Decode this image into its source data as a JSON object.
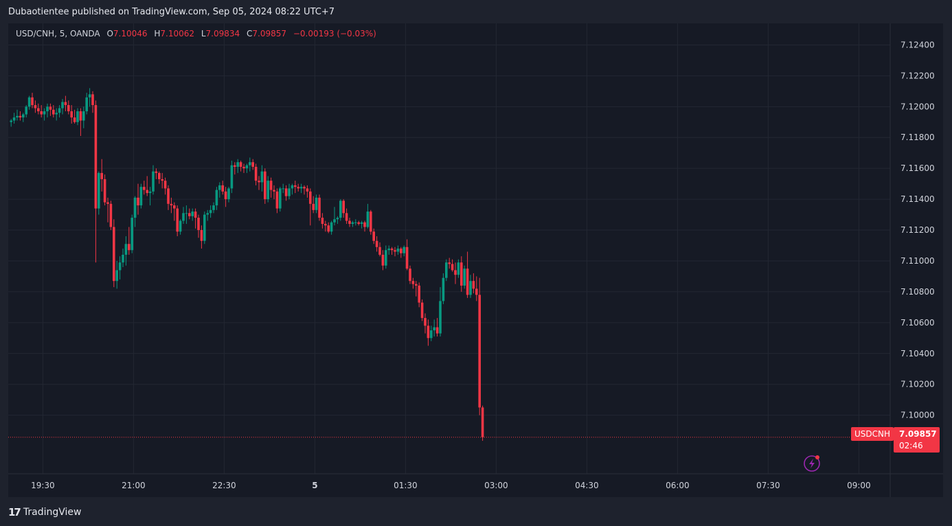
{
  "header": {
    "published_text": "Dubaotientee published on TradingView.com, Sep 05, 2024 08:22 UTC+7"
  },
  "legend": {
    "symbol": "USD/CNH, 5, OANDA",
    "o_label": "O",
    "o_value": "7.10046",
    "h_label": "H",
    "h_value": "7.10062",
    "l_label": "L",
    "l_value": "7.09834",
    "c_label": "C",
    "c_value": "7.09857",
    "change": "−0.00193 (−0.03%)"
  },
  "price_tag": {
    "symbol": "USDCNH",
    "price": "7.09857",
    "countdown": "02:46"
  },
  "footer": {
    "brand": "TradingView",
    "logo_mark": "17"
  },
  "colors": {
    "up": "#089981",
    "down": "#f23645",
    "background": "#161a25",
    "grid": "#232733"
  },
  "icons": {
    "bottom_right": "lightning-icon"
  },
  "chart_data": {
    "type": "candlestick",
    "title": "USD/CNH, 5, OANDA",
    "ylim": [
      7.0962,
      7.1254
    ],
    "y_ticks": [
      "7.12400",
      "7.12200",
      "7.12000",
      "7.11800",
      "7.11600",
      "7.11400",
      "7.11200",
      "7.11000",
      "7.10800",
      "7.10600",
      "7.10400",
      "7.10200",
      "7.10000"
    ],
    "x_ticks": [
      "19:30",
      "21:00",
      "22:30",
      "5",
      "01:30",
      "03:00",
      "04:30",
      "06:00",
      "07:30",
      "09:00"
    ],
    "last_price": 7.09857,
    "grid": true,
    "candles": [
      [
        7.119,
        7.1192,
        7.1187,
        7.1191
      ],
      [
        7.1191,
        7.1196,
        7.1189,
        7.1193
      ],
      [
        7.1193,
        7.1198,
        7.1191,
        7.1194
      ],
      [
        7.1194,
        7.1197,
        7.1191,
        7.1193
      ],
      [
        7.1193,
        7.1196,
        7.119,
        7.1195
      ],
      [
        7.1195,
        7.1201,
        7.1193,
        7.12
      ],
      [
        7.12,
        7.1207,
        7.1198,
        7.1206
      ],
      [
        7.1206,
        7.1209,
        7.1199,
        7.1201
      ],
      [
        7.1201,
        7.1204,
        7.1196,
        7.1199
      ],
      [
        7.1199,
        7.1202,
        7.1195,
        7.1197
      ],
      [
        7.1197,
        7.1201,
        7.1193,
        7.1195
      ],
      [
        7.1195,
        7.1199,
        7.1191,
        7.1197
      ],
      [
        7.1197,
        7.1202,
        7.1193,
        7.12
      ],
      [
        7.12,
        7.1202,
        7.1194,
        7.1198
      ],
      [
        7.1198,
        7.1201,
        7.1193,
        7.1195
      ],
      [
        7.1195,
        7.1199,
        7.1191,
        7.1196
      ],
      [
        7.1196,
        7.1201,
        7.1193,
        7.1199
      ],
      [
        7.1199,
        7.1205,
        7.1195,
        7.1203
      ],
      [
        7.1203,
        7.1207,
        7.1197,
        7.1201
      ],
      [
        7.1201,
        7.1204,
        7.1195,
        7.1197
      ],
      [
        7.1197,
        7.1201,
        7.1189,
        7.1193
      ],
      [
        7.1193,
        7.1198,
        7.1189,
        7.119
      ],
      [
        7.119,
        7.1199,
        7.1188,
        7.1197
      ],
      [
        7.1197,
        7.1199,
        7.1181,
        7.1191
      ],
      [
        7.1191,
        7.12,
        7.1186,
        7.1197
      ],
      [
        7.1197,
        7.1209,
        7.1195,
        7.1206
      ],
      [
        7.1206,
        7.1212,
        7.12,
        7.1208
      ],
      [
        7.1208,
        7.121,
        7.1196,
        7.1201
      ],
      [
        7.1201,
        7.1204,
        7.1099,
        7.1134
      ],
      [
        7.1134,
        7.1158,
        7.113,
        7.1157
      ],
      [
        7.1157,
        7.1166,
        7.1145,
        7.1153
      ],
      [
        7.1153,
        7.1156,
        7.1136,
        7.1138
      ],
      [
        7.1138,
        7.1141,
        7.1125,
        7.1137
      ],
      [
        7.1137,
        7.1139,
        7.112,
        7.1122
      ],
      [
        7.1122,
        7.1127,
        7.1083,
        7.1087
      ],
      [
        7.1087,
        7.11,
        7.1082,
        7.1094
      ],
      [
        7.1094,
        7.1103,
        7.1088,
        7.1099
      ],
      [
        7.1099,
        7.1108,
        7.1096,
        7.1104
      ],
      [
        7.1104,
        7.1116,
        7.1097,
        7.1111
      ],
      [
        7.1111,
        7.1122,
        7.1104,
        7.1107
      ],
      [
        7.1107,
        7.113,
        7.1105,
        7.1128
      ],
      [
        7.1128,
        7.1142,
        7.1122,
        7.1141
      ],
      [
        7.1141,
        7.115,
        7.113,
        7.1136
      ],
      [
        7.1136,
        7.115,
        7.1134,
        7.1148
      ],
      [
        7.1148,
        7.1152,
        7.1143,
        7.1146
      ],
      [
        7.1146,
        7.1155,
        7.1142,
        7.1144
      ],
      [
        7.1144,
        7.1148,
        7.1136,
        7.1145
      ],
      [
        7.1145,
        7.1162,
        7.1143,
        7.1158
      ],
      [
        7.1158,
        7.116,
        7.1153,
        7.1157
      ],
      [
        7.1157,
        7.1158,
        7.115,
        7.1153
      ],
      [
        7.1153,
        7.1157,
        7.1147,
        7.1152
      ],
      [
        7.1152,
        7.1154,
        7.1143,
        7.1147
      ],
      [
        7.1147,
        7.1149,
        7.1133,
        7.1137
      ],
      [
        7.1137,
        7.1141,
        7.1131,
        7.1136
      ],
      [
        7.1136,
        7.1138,
        7.1126,
        7.1134
      ],
      [
        7.1134,
        7.1136,
        7.1116,
        7.1119
      ],
      [
        7.1119,
        7.1127,
        7.1117,
        7.1126
      ],
      [
        7.1126,
        7.1135,
        7.1124,
        7.1131
      ],
      [
        7.1131,
        7.1136,
        7.1124,
        7.1131
      ],
      [
        7.1131,
        7.1134,
        7.1127,
        7.1129
      ],
      [
        7.1129,
        7.1134,
        7.1126,
        7.1132
      ],
      [
        7.1132,
        7.1134,
        7.1121,
        7.1128
      ],
      [
        7.1128,
        7.113,
        7.1115,
        7.112
      ],
      [
        7.112,
        7.1123,
        7.1108,
        7.1113
      ],
      [
        7.1113,
        7.1132,
        7.1111,
        7.113
      ],
      [
        7.113,
        7.1133,
        7.1126,
        7.1131
      ],
      [
        7.1131,
        7.1136,
        7.1128,
        7.1133
      ],
      [
        7.1133,
        7.1138,
        7.1131,
        7.1136
      ],
      [
        7.1136,
        7.1148,
        7.1133,
        7.1146
      ],
      [
        7.1146,
        7.1151,
        7.1141,
        7.1149
      ],
      [
        7.1149,
        7.1152,
        7.1143,
        7.1145
      ],
      [
        7.1145,
        7.1148,
        7.1135,
        7.114
      ],
      [
        7.114,
        7.1148,
        7.1138,
        7.1147
      ],
      [
        7.1147,
        7.1165,
        7.1144,
        7.1162
      ],
      [
        7.1162,
        7.1164,
        7.1156,
        7.1161
      ],
      [
        7.1161,
        7.1166,
        7.1157,
        7.1164
      ],
      [
        7.1164,
        7.1165,
        7.1158,
        7.1161
      ],
      [
        7.1161,
        7.1163,
        7.1157,
        7.116
      ],
      [
        7.116,
        7.1163,
        7.1157,
        7.1162
      ],
      [
        7.1162,
        7.1167,
        7.1158,
        7.1164
      ],
      [
        7.1164,
        7.1166,
        7.1159,
        7.1161
      ],
      [
        7.1161,
        7.1163,
        7.1149,
        7.1152
      ],
      [
        7.1152,
        7.1155,
        7.1146,
        7.1151
      ],
      [
        7.1151,
        7.1162,
        7.1145,
        7.1158
      ],
      [
        7.1158,
        7.116,
        7.1137,
        7.114
      ],
      [
        7.114,
        7.1155,
        7.1138,
        7.1152
      ],
      [
        7.1152,
        7.1154,
        7.1141,
        7.1146
      ],
      [
        7.1146,
        7.1149,
        7.114,
        7.1145
      ],
      [
        7.1145,
        7.1147,
        7.1131,
        7.1134
      ],
      [
        7.1134,
        7.1148,
        7.1132,
        7.1147
      ],
      [
        7.1147,
        7.115,
        7.1144,
        7.1147
      ],
      [
        7.1147,
        7.1149,
        7.1139,
        7.1142
      ],
      [
        7.1142,
        7.115,
        7.114,
        7.1147
      ],
      [
        7.1147,
        7.115,
        7.1143,
        7.1149
      ],
      [
        7.1149,
        7.1152,
        7.1144,
        7.1148
      ],
      [
        7.1148,
        7.115,
        7.1145,
        7.1147
      ],
      [
        7.1147,
        7.115,
        7.1144,
        7.1148
      ],
      [
        7.1148,
        7.1149,
        7.1143,
        7.1147
      ],
      [
        7.1147,
        7.1149,
        7.1141,
        7.1145
      ],
      [
        7.1145,
        7.1147,
        7.1123,
        7.1137
      ],
      [
        7.1137,
        7.1142,
        7.1131,
        7.1133
      ],
      [
        7.1133,
        7.1143,
        7.1131,
        7.1141
      ],
      [
        7.1141,
        7.1143,
        7.1126,
        7.1128
      ],
      [
        7.1128,
        7.1131,
        7.1121,
        7.1124
      ],
      [
        7.1124,
        7.1126,
        7.1119,
        7.1123
      ],
      [
        7.1123,
        7.1125,
        7.1118,
        7.1119
      ],
      [
        7.1119,
        7.1126,
        7.1117,
        7.1125
      ],
      [
        7.1125,
        7.1135,
        7.1123,
        7.1127
      ],
      [
        7.1127,
        7.1129,
        7.1124,
        7.1128
      ],
      [
        7.1128,
        7.114,
        7.1126,
        7.1139
      ],
      [
        7.1139,
        7.114,
        7.1128,
        7.1131
      ],
      [
        7.1131,
        7.1134,
        7.1124,
        7.1126
      ],
      [
        7.1126,
        7.1128,
        7.1122,
        7.1124
      ],
      [
        7.1124,
        7.1126,
        7.1122,
        7.1125
      ],
      [
        7.1125,
        7.1127,
        7.1123,
        7.1125
      ],
      [
        7.1125,
        7.1126,
        7.1123,
        7.1124
      ],
      [
        7.1124,
        7.1126,
        7.1121,
        7.1125
      ],
      [
        7.1125,
        7.1126,
        7.1119,
        7.1122
      ],
      [
        7.1122,
        7.1137,
        7.1121,
        7.1132
      ],
      [
        7.1132,
        7.1133,
        7.1117,
        7.1119
      ],
      [
        7.1119,
        7.1121,
        7.1111,
        7.1113
      ],
      [
        7.1113,
        7.1116,
        7.1106,
        7.1109
      ],
      [
        7.1109,
        7.1112,
        7.1103,
        7.1104
      ],
      [
        7.1104,
        7.1107,
        7.1094,
        7.1097
      ],
      [
        7.1097,
        7.111,
        7.1095,
        7.1107
      ],
      [
        7.1107,
        7.111,
        7.1104,
        7.1108
      ],
      [
        7.1108,
        7.1109,
        7.1104,
        7.1107
      ],
      [
        7.1107,
        7.1109,
        7.1103,
        7.1106
      ],
      [
        7.1106,
        7.111,
        7.1104,
        7.1108
      ],
      [
        7.1108,
        7.1109,
        7.1102,
        7.1105
      ],
      [
        7.1105,
        7.111,
        7.1103,
        7.1109
      ],
      [
        7.1109,
        7.1114,
        7.1094,
        7.1095
      ],
      [
        7.1095,
        7.1097,
        7.1085,
        7.1087
      ],
      [
        7.1087,
        7.1089,
        7.1082,
        7.1085
      ],
      [
        7.1085,
        7.1087,
        7.1077,
        7.1084
      ],
      [
        7.1084,
        7.1086,
        7.107,
        7.1073
      ],
      [
        7.1073,
        7.1075,
        7.1061,
        7.1063
      ],
      [
        7.1063,
        7.1066,
        7.1053,
        7.1058
      ],
      [
        7.1058,
        7.1062,
        7.1045,
        7.105
      ],
      [
        7.105,
        7.1058,
        7.1048,
        7.1055
      ],
      [
        7.1055,
        7.1062,
        7.1051,
        7.1057
      ],
      [
        7.1057,
        7.1063,
        7.1051,
        7.1053
      ],
      [
        7.1053,
        7.1083,
        7.1051,
        7.1074
      ],
      [
        7.1074,
        7.1092,
        7.1072,
        7.1089
      ],
      [
        7.1089,
        7.1101,
        7.1087,
        7.1099
      ],
      [
        7.1099,
        7.1102,
        7.1095,
        7.1098
      ],
      [
        7.1098,
        7.1101,
        7.1093,
        7.1094
      ],
      [
        7.1094,
        7.1099,
        7.1085,
        7.1091
      ],
      [
        7.1091,
        7.1101,
        7.1089,
        7.1099
      ],
      [
        7.1099,
        7.1103,
        7.108,
        7.1084
      ],
      [
        7.1084,
        7.1097,
        7.1082,
        7.1095
      ],
      [
        7.1095,
        7.1106,
        7.1076,
        7.1078
      ],
      [
        7.1078,
        7.1091,
        7.1076,
        7.1087
      ],
      [
        7.1087,
        7.1092,
        7.1079,
        7.1082
      ],
      [
        7.1082,
        7.109,
        7.1074,
        7.1078
      ],
      [
        7.1078,
        7.1089,
        7.1,
        7.1005
      ],
      [
        7.1005,
        7.10062,
        7.09834,
        7.09857
      ]
    ]
  }
}
